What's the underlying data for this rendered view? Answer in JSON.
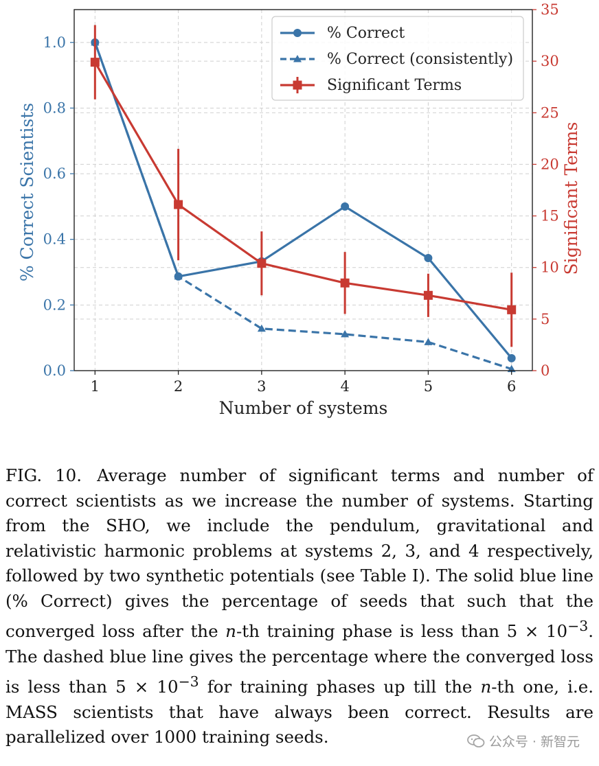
{
  "chart_data": {
    "type": "line",
    "x": [
      1,
      2,
      3,
      4,
      5,
      6
    ],
    "xticks": [
      "1",
      "2",
      "3",
      "4",
      "5",
      "6"
    ],
    "xlabel": "Number of systems",
    "xlim": [
      0.75,
      6.25
    ],
    "left_axis": {
      "label": "% Correct Scientists",
      "ylim": [
        0.0,
        1.1
      ],
      "ticks": [
        "0.0",
        "0.2",
        "0.4",
        "0.6",
        "0.8",
        "1.0"
      ],
      "tick_values": [
        0.0,
        0.2,
        0.4,
        0.6,
        0.8,
        1.0
      ],
      "color": "#3a74a8"
    },
    "right_axis": {
      "label": "Significant Terms",
      "ylim": [
        0,
        35
      ],
      "ticks": [
        "0",
        "5",
        "10",
        "15",
        "20",
        "25",
        "30",
        "35"
      ],
      "tick_values": [
        0,
        5,
        10,
        15,
        20,
        25,
        30,
        35
      ],
      "color": "#c83a32"
    },
    "grid": true,
    "legend_position": "top-right",
    "series": [
      {
        "name": "% Correct",
        "axis": "left",
        "style": "solid",
        "marker": "circle",
        "color": "#3a74a8",
        "values": [
          1.0,
          0.287,
          0.333,
          0.5,
          0.343,
          0.038
        ]
      },
      {
        "name": "% Correct (consistently)",
        "axis": "left",
        "style": "dashed",
        "marker": "triangle",
        "color": "#3a74a8",
        "values": [
          1.0,
          0.287,
          0.128,
          0.111,
          0.087,
          0.005
        ]
      },
      {
        "name": "Significant Terms",
        "axis": "right",
        "style": "solid",
        "marker": "square",
        "color": "#c83a32",
        "values": [
          29.9,
          16.1,
          10.4,
          8.5,
          7.3,
          5.9
        ],
        "errors": [
          3.6,
          5.4,
          3.1,
          3.0,
          2.1,
          3.6
        ]
      }
    ]
  },
  "caption": {
    "label": "FIG. 10.",
    "p1": "Average number of significant terms and number of correct scientists as we increase the number of systems. Starting from the SHO, we include the pendulum, gravitational and relativistic harmonic problems at systems 2, 3, and 4 respectively, followed by two synthetic potentials (see Table I). The solid blue line (% Correct) gives the percentage of seeds that such that the converged loss after the ",
    "n1": "n",
    "p2": "-th training phase is less than 5 × 10",
    "exp1": "−3",
    "p3": ". The dashed blue line gives the percentage where the converged loss is less than 5 × 10",
    "exp2": "−3",
    "p4": " for training phases up till the ",
    "n2": "n",
    "p5": "-th one, i.e. MASS scientists that have always been correct. Results are parallelized over 1000 training seeds."
  },
  "watermark": {
    "text": "公众号 · 新智元",
    "icon": "wechat-icon"
  }
}
